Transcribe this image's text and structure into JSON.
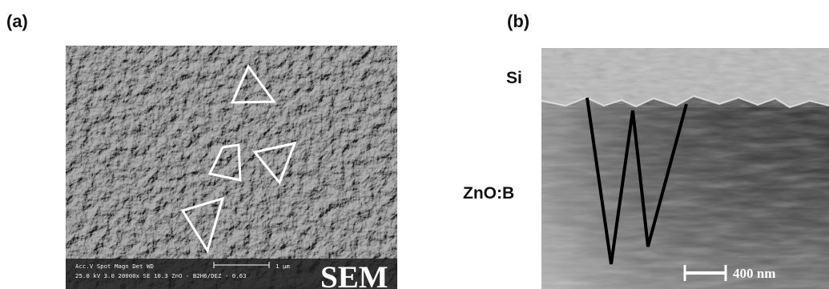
{
  "figure": {
    "panel_a_label": "(a)",
    "panel_b_label": "(b)"
  },
  "panel_a": {
    "info_bar": {
      "row1": "Acc.V  Spot Magn   Det  WD",
      "row2": "25.0 kV 3.0  20000x  SE   10.3  ZnO - B2H6/DEZ - 0.63",
      "scale_label": "1 μm"
    },
    "watermark": "SEM"
  },
  "panel_b": {
    "label_top": "Si",
    "label_middle": "ZnO:B",
    "scale_label": "400 nm"
  }
}
